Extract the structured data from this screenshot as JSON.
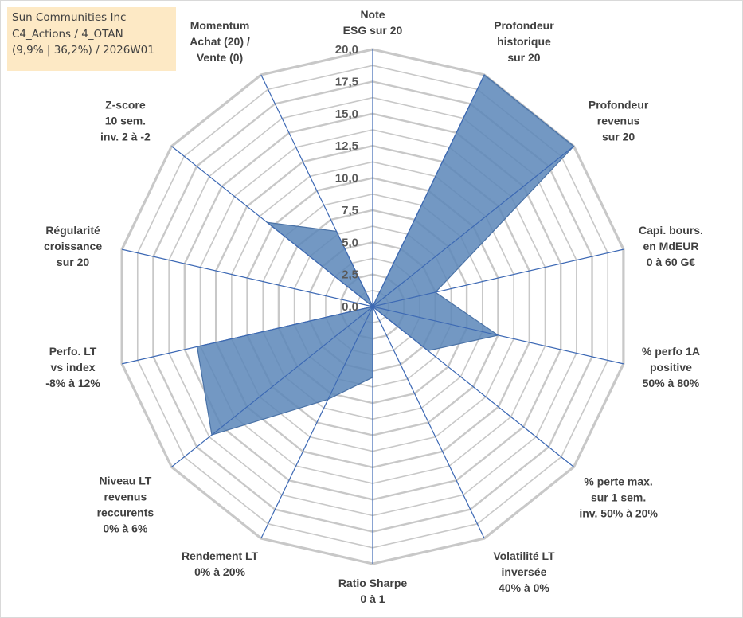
{
  "info_box": {
    "line1": "Sun Communities Inc",
    "line2": "C4_Actions / 4_OTAN",
    "line3": "(9,9% | 36,2%) / 2026W01"
  },
  "colors": {
    "fill": "#5b86b8",
    "stroke": "#4a72a6",
    "grid": "#c8c8c8",
    "spoke": "#3c68b4",
    "info_bg": "#fde9c5"
  },
  "chart_data": {
    "type": "radar",
    "title": "",
    "rmin": 0,
    "rmax": 20,
    "ticks": [
      "0,0",
      "2,5",
      "5,0",
      "7,5",
      "10,0",
      "12,5",
      "15,0",
      "17,5",
      "20,0"
    ],
    "tick_values": [
      0,
      2.5,
      5,
      7.5,
      10,
      12.5,
      15,
      17.5,
      20
    ],
    "categories": [
      [
        "Note",
        "ESG sur 20"
      ],
      [
        "Profondeur",
        "historique",
        "sur 20"
      ],
      [
        "Profondeur",
        "revenus",
        "sur 20"
      ],
      [
        "Capi. bours.",
        "en MdEUR",
        "0 à 60 G€"
      ],
      [
        "% perfo 1A",
        "positive",
        "50% à 80%"
      ],
      [
        "% perte max.",
        "sur 1 sem.",
        "inv. 50% à 20%"
      ],
      [
        "Volatilité LT",
        "inversée",
        "40% à 0%"
      ],
      [
        "Ratio Sharpe",
        "0 à 1"
      ],
      [
        "Rendement LT",
        "0% à 20%"
      ],
      [
        "Niveau LT",
        "revenus",
        "reccurents",
        "0% à 6%"
      ],
      [
        "Perfo. LT",
        "vs index",
        "-8% à 12%"
      ],
      [
        "Régularité",
        "croissance",
        "sur 20"
      ],
      [
        "Z-score",
        "10 sem.",
        "inv. 2 à -2"
      ],
      [
        "Momentum",
        "Achat (20) /",
        "Vente (0)"
      ]
    ],
    "series": [
      {
        "values": [
          0,
          20,
          20,
          5,
          10,
          5.5,
          0,
          5.5,
          8,
          16,
          14,
          0,
          10.5,
          6.5
        ]
      }
    ],
    "grid": true
  }
}
